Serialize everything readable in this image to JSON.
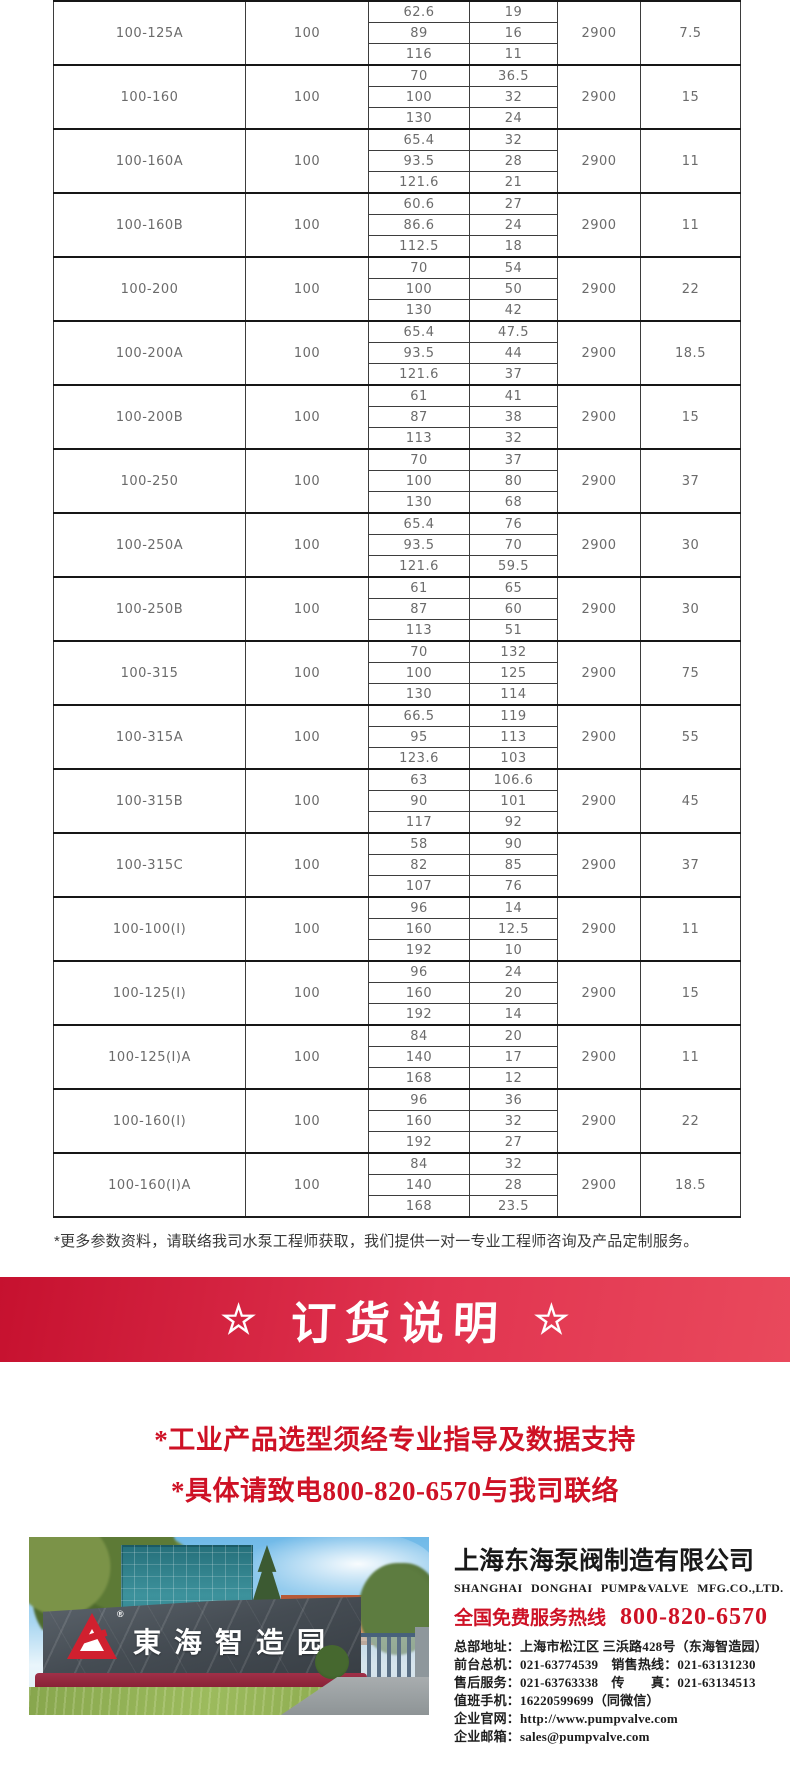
{
  "table": {
    "groups": [
      {
        "model": "100-125A",
        "dn": "100",
        "points": [
          [
            "62.6",
            "19"
          ],
          [
            "89",
            "16"
          ],
          [
            "116",
            "11"
          ]
        ],
        "speed": "2900",
        "power": "7.5"
      },
      {
        "model": "100-160",
        "dn": "100",
        "points": [
          [
            "70",
            "36.5"
          ],
          [
            "100",
            "32"
          ],
          [
            "130",
            "24"
          ]
        ],
        "speed": "2900",
        "power": "15"
      },
      {
        "model": "100-160A",
        "dn": "100",
        "points": [
          [
            "65.4",
            "32"
          ],
          [
            "93.5",
            "28"
          ],
          [
            "121.6",
            "21"
          ]
        ],
        "speed": "2900",
        "power": "11"
      },
      {
        "model": "100-160B",
        "dn": "100",
        "points": [
          [
            "60.6",
            "27"
          ],
          [
            "86.6",
            "24"
          ],
          [
            "112.5",
            "18"
          ]
        ],
        "speed": "2900",
        "power": "11"
      },
      {
        "model": "100-200",
        "dn": "100",
        "points": [
          [
            "70",
            "54"
          ],
          [
            "100",
            "50"
          ],
          [
            "130",
            "42"
          ]
        ],
        "speed": "2900",
        "power": "22"
      },
      {
        "model": "100-200A",
        "dn": "100",
        "points": [
          [
            "65.4",
            "47.5"
          ],
          [
            "93.5",
            "44"
          ],
          [
            "121.6",
            "37"
          ]
        ],
        "speed": "2900",
        "power": "18.5"
      },
      {
        "model": "100-200B",
        "dn": "100",
        "points": [
          [
            "61",
            "41"
          ],
          [
            "87",
            "38"
          ],
          [
            "113",
            "32"
          ]
        ],
        "speed": "2900",
        "power": "15"
      },
      {
        "model": "100-250",
        "dn": "100",
        "points": [
          [
            "70",
            "37"
          ],
          [
            "100",
            "80"
          ],
          [
            "130",
            "68"
          ]
        ],
        "speed": "2900",
        "power": "37"
      },
      {
        "model": "100-250A",
        "dn": "100",
        "points": [
          [
            "65.4",
            "76"
          ],
          [
            "93.5",
            "70"
          ],
          [
            "121.6",
            "59.5"
          ]
        ],
        "speed": "2900",
        "power": "30"
      },
      {
        "model": "100-250B",
        "dn": "100",
        "points": [
          [
            "61",
            "65"
          ],
          [
            "87",
            "60"
          ],
          [
            "113",
            "51"
          ]
        ],
        "speed": "2900",
        "power": "30"
      },
      {
        "model": "100-315",
        "dn": "100",
        "points": [
          [
            "70",
            "132"
          ],
          [
            "100",
            "125"
          ],
          [
            "130",
            "114"
          ]
        ],
        "speed": "2900",
        "power": "75"
      },
      {
        "model": "100-315A",
        "dn": "100",
        "points": [
          [
            "66.5",
            "119"
          ],
          [
            "95",
            "113"
          ],
          [
            "123.6",
            "103"
          ]
        ],
        "speed": "2900",
        "power": "55"
      },
      {
        "model": "100-315B",
        "dn": "100",
        "points": [
          [
            "63",
            "106.6"
          ],
          [
            "90",
            "101"
          ],
          [
            "117",
            "92"
          ]
        ],
        "speed": "2900",
        "power": "45"
      },
      {
        "model": "100-315C",
        "dn": "100",
        "points": [
          [
            "58",
            "90"
          ],
          [
            "82",
            "85"
          ],
          [
            "107",
            "76"
          ]
        ],
        "speed": "2900",
        "power": "37"
      },
      {
        "model": "100-100(I)",
        "dn": "100",
        "points": [
          [
            "96",
            "14"
          ],
          [
            "160",
            "12.5"
          ],
          [
            "192",
            "10"
          ]
        ],
        "speed": "2900",
        "power": "11"
      },
      {
        "model": "100-125(I)",
        "dn": "100",
        "points": [
          [
            "96",
            "24"
          ],
          [
            "160",
            "20"
          ],
          [
            "192",
            "14"
          ]
        ],
        "speed": "2900",
        "power": "15"
      },
      {
        "model": "100-125(I)A",
        "dn": "100",
        "points": [
          [
            "84",
            "20"
          ],
          [
            "140",
            "17"
          ],
          [
            "168",
            "12"
          ]
        ],
        "speed": "2900",
        "power": "11"
      },
      {
        "model": "100-160(I)",
        "dn": "100",
        "points": [
          [
            "96",
            "36"
          ],
          [
            "160",
            "32"
          ],
          [
            "192",
            "27"
          ]
        ],
        "speed": "2900",
        "power": "22"
      },
      {
        "model": "100-160(I)A",
        "dn": "100",
        "points": [
          [
            "84",
            "32"
          ],
          [
            "140",
            "28"
          ],
          [
            "168",
            "23.5"
          ]
        ],
        "speed": "2900",
        "power": "18.5"
      }
    ]
  },
  "note": "*更多参数资料，请联络我司水泵工程师获取，我们提供一对一专业工程师咨询及产品定制服务。",
  "banner": {
    "star_left": "☆",
    "title": "订货说明",
    "star_right": "☆"
  },
  "notices": [
    "*工业产品选型须经专业指导及数据支持",
    "*具体请致电800-820-6570与我司联络"
  ],
  "footer": {
    "photo": {
      "sign_text": "東海智造园"
    },
    "company_cn": "上海东海泵阀制造有限公司",
    "company_en": "SHANGHAI DONGHAI PUMP&VALVE MFG.CO.,LTD.",
    "hotline_label": "全国免费服务热线",
    "hotline_number": "800-820-6570",
    "details": [
      "总部地址：上海市松江区 三浜路428号（东海智造园）",
      "前台总机：021-63774539　销售热线：021-63131230",
      "售后服务：021-63763338　传　　真：021-63134513",
      "值班手机：16220599699（同微信）",
      "企业官网：http://www.pumpvalve.com",
      "企业邮箱：sales@pumpvalve.com"
    ],
    "accent_color": "#ce1125"
  }
}
